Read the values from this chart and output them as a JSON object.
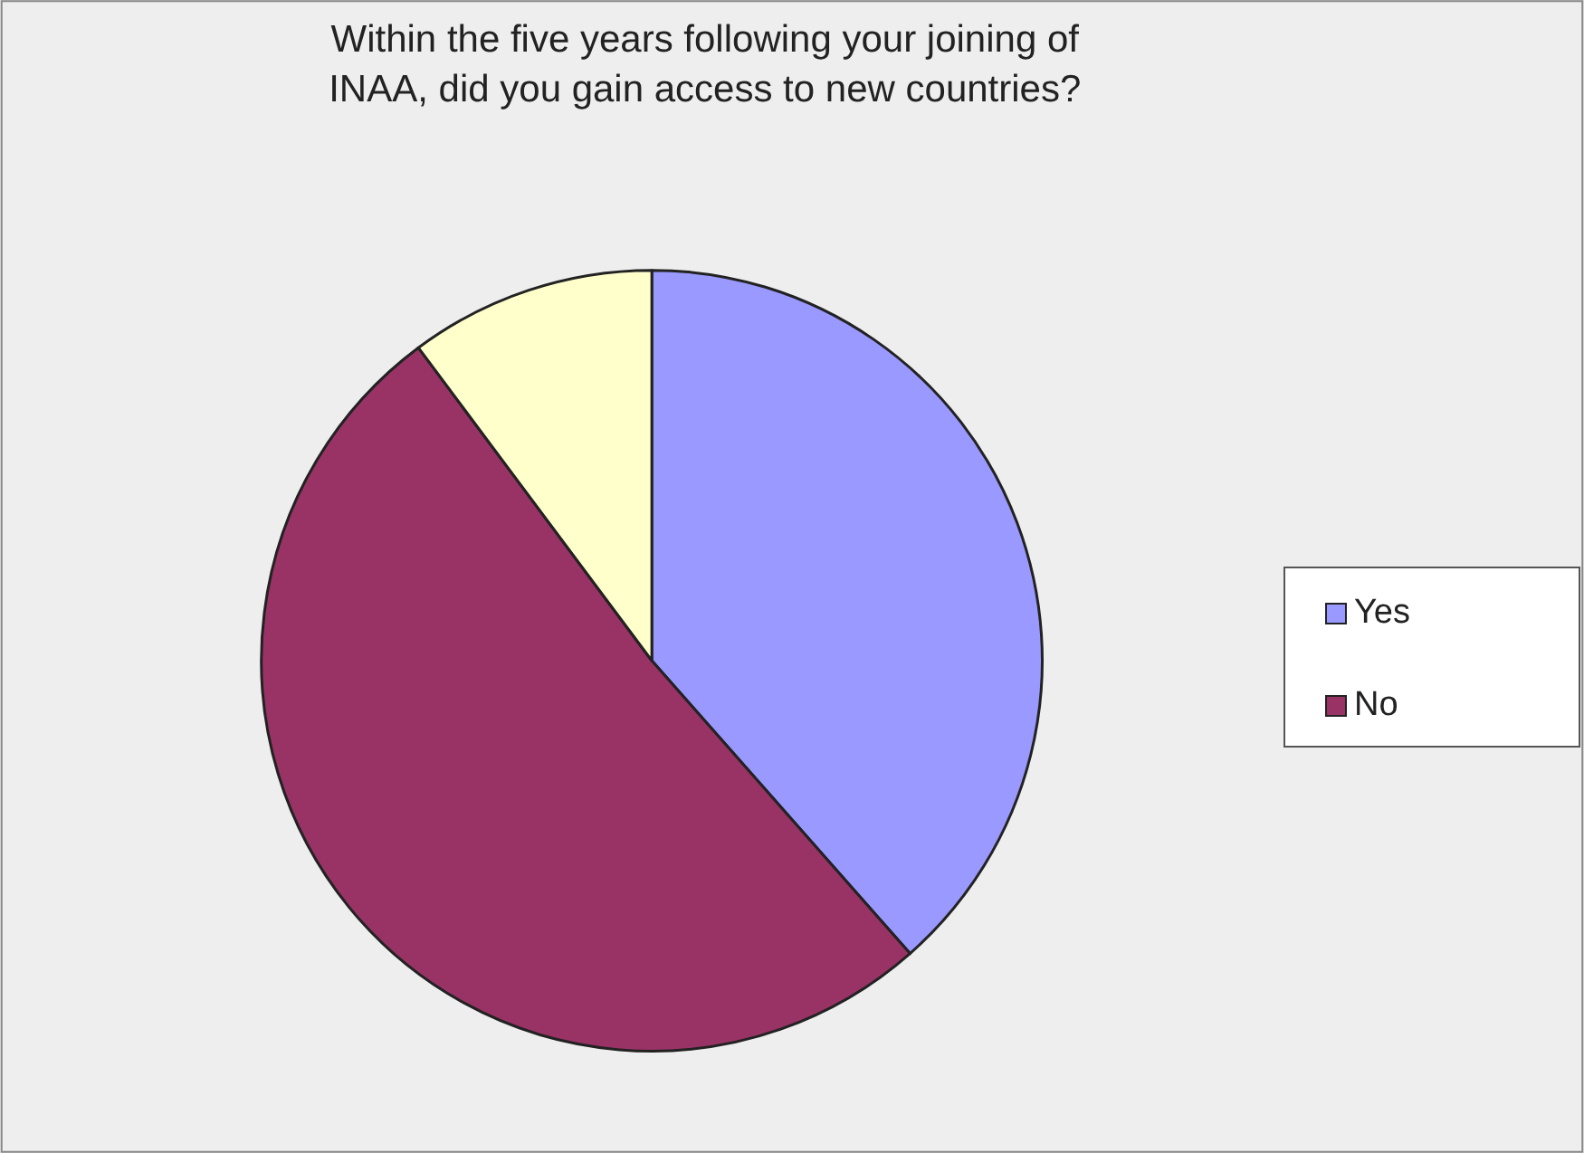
{
  "chart_data": {
    "type": "pie",
    "title": "Within the five years following your joining of INAA, did you gain access to new countries?",
    "categories": [
      "Yes",
      "No",
      null
    ],
    "values": [
      38.5,
      51.3,
      10.2
    ],
    "colors": [
      "#9999ff",
      "#993366",
      "#ffffcc"
    ],
    "legend": "right"
  }
}
